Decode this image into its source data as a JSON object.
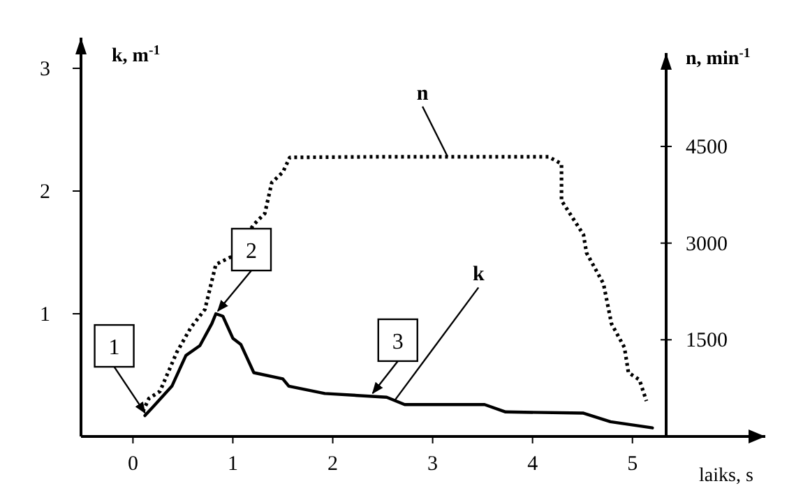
{
  "chart_data": {
    "type": "line",
    "xlabel": "laiks, s",
    "ylabel": "k, m$^{-1}$",
    "y2label": "n, min$^{-1}$",
    "xlim": [
      -0.52,
      6.33
    ],
    "xticks": [
      0,
      1,
      2,
      3,
      4,
      5
    ],
    "ylim": [
      0,
      3.25
    ],
    "yticks": [
      1,
      2,
      3
    ],
    "y2lim": [
      0,
      5950
    ],
    "y2ticks": [
      1500,
      3000,
      4500
    ],
    "grid": false,
    "marker": "none",
    "series": [
      {
        "name": "n",
        "color": "#000000",
        "axis": "y2",
        "line_style": "dotted",
        "x": [
          0.1,
          0.16,
          0.27,
          0.44,
          0.58,
          0.72,
          0.83,
          1.0,
          1.21,
          1.32,
          1.39,
          1.5,
          1.57,
          2.5,
          3.5,
          4.16,
          4.29,
          4.29,
          4.51,
          4.54,
          4.71,
          4.79,
          4.92,
          4.96,
          5.07,
          5.14
        ],
        "values": [
          390,
          590,
          700,
          1310,
          1690,
          1970,
          2670,
          2800,
          3290,
          3460,
          3940,
          4100,
          4330,
          4340,
          4340,
          4340,
          4230,
          3660,
          3130,
          2850,
          2370,
          1750,
          1380,
          990,
          880,
          550
        ]
      },
      {
        "name": "k",
        "color": "#000000",
        "line_style": "solid",
        "x": [
          0.12,
          0.2,
          0.39,
          0.53,
          0.67,
          0.79,
          0.83,
          0.9,
          1.0,
          1.08,
          1.21,
          1.5,
          1.56,
          1.92,
          2.54,
          2.72,
          3.52,
          3.73,
          4.51,
          4.78,
          5.2
        ],
        "values": [
          0.17,
          0.24,
          0.41,
          0.66,
          0.74,
          0.92,
          1.0,
          0.98,
          0.8,
          0.75,
          0.52,
          0.47,
          0.41,
          0.35,
          0.32,
          0.26,
          0.26,
          0.2,
          0.19,
          0.12,
          0.07
        ]
      }
    ],
    "annotations": [
      {
        "text": "1",
        "x": 0.12,
        "y": 0.17
      },
      {
        "text": "2",
        "x": 0.85,
        "y": 1.0
      },
      {
        "text": "3",
        "x": 2.4,
        "y": 0.33
      }
    ]
  }
}
